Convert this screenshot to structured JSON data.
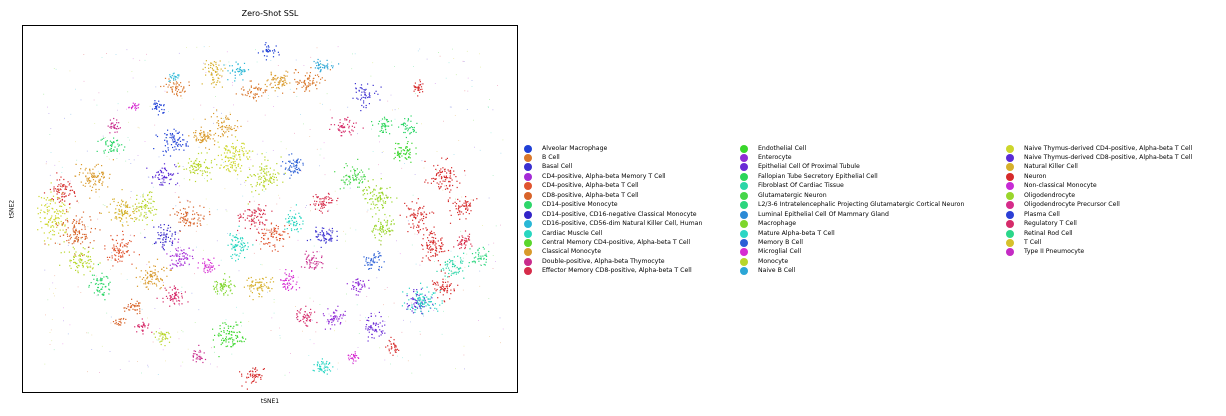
{
  "chart_data": {
    "type": "scatter",
    "title": "Zero-Shot SSL",
    "xlabel": "tSNE1",
    "ylabel": "tSNE2",
    "grid": false,
    "xticks": false,
    "yticks": false,
    "legend_placement": "right-outside",
    "legend_columns": 3,
    "series": [
      {
        "name": "Alveolar Macrophage",
        "color": "#1f3fd6"
      },
      {
        "name": "B Cell",
        "color": "#d9772b"
      },
      {
        "name": "Basal Cell",
        "color": "#3a2fd0"
      },
      {
        "name": "CD4-positive, Alpha-beta Memory T Cell",
        "color": "#a42bd6"
      },
      {
        "name": "CD4-positive, Alpha-beta T Cell",
        "color": "#e0542f"
      },
      {
        "name": "CD8-positive, Alpha-beta T Cell",
        "color": "#d8642a"
      },
      {
        "name": "CD14-positive Monocyte",
        "color": "#2ed66a"
      },
      {
        "name": "CD14-positive, CD16-negative Classical Monocyte",
        "color": "#3224c8"
      },
      {
        "name": "CD16-positive, CD56-dim Natural Killer Cell, Human",
        "color": "#29b7d6"
      },
      {
        "name": "Cardiac Muscle Cell",
        "color": "#28d6c0"
      },
      {
        "name": "Central Memory CD4-positive, Alpha-beta T Cell",
        "color": "#5ad62b"
      },
      {
        "name": "Classical Monocyte",
        "color": "#d99a2b"
      },
      {
        "name": "Double-positive, Alpha-beta Thymocyte",
        "color": "#c92b8c"
      },
      {
        "name": "Effector Memory CD8-positive, Alpha-beta T Cell",
        "color": "#d62b4a"
      },
      {
        "name": "Endothelial Cell",
        "color": "#39d62b"
      },
      {
        "name": "Enterocyte",
        "color": "#8f2bd6"
      },
      {
        "name": "Epithelial Cell Of Proximal Tubule",
        "color": "#6a2bd6"
      },
      {
        "name": "Fallopian Tube Secretory Epithelial Cell",
        "color": "#2bd65a"
      },
      {
        "name": "Fibroblast Of Cardiac Tissue",
        "color": "#2bd6a8"
      },
      {
        "name": "Glutamatergic Neuron",
        "color": "#46d64a"
      },
      {
        "name": "L2/3-6 Intratelencephalic Projecting Glutamatergic Cortical Neuron",
        "color": "#2bd67e"
      },
      {
        "name": "Luminal Epithelial Cell Of Mammary Gland",
        "color": "#2b8ad6"
      },
      {
        "name": "Macrophage",
        "color": "#7ed62b"
      },
      {
        "name": "Mature Alpha-beta T Cell",
        "color": "#2bd6c4"
      },
      {
        "name": "Memory B Cell",
        "color": "#2b5fd6"
      },
      {
        "name": "Microglial Cell",
        "color": "#d62bd2"
      },
      {
        "name": "Monocyte",
        "color": "#b8d62b"
      },
      {
        "name": "Naive B Cell",
        "color": "#2ba6d6"
      },
      {
        "name": "Naive Thymus-derived CD4-positive, Alpha-beta T Cell",
        "color": "#cdd62b"
      },
      {
        "name": "Naive Thymus-derived CD8-positive, Alpha-beta T Cell",
        "color": "#5a2bd6"
      },
      {
        "name": "Natural Killer Cell",
        "color": "#d6b02b"
      },
      {
        "name": "Neuron",
        "color": "#d62b2b"
      },
      {
        "name": "Non-classical Monocyte",
        "color": "#c72bd6"
      },
      {
        "name": "Oligodendrocyte",
        "color": "#9ad62b"
      },
      {
        "name": "Oligodendrocyte Precursor Cell",
        "color": "#d62b8a"
      },
      {
        "name": "Plasma Cell",
        "color": "#2b3fd6"
      },
      {
        "name": "Regulatory T Cell",
        "color": "#d62b6a"
      },
      {
        "name": "Retinal Rod Cell",
        "color": "#2bd68a"
      },
      {
        "name": "T Cell",
        "color": "#d6c02b"
      },
      {
        "name": "Type II Pneumocyte",
        "color": "#c42bc4"
      }
    ]
  }
}
